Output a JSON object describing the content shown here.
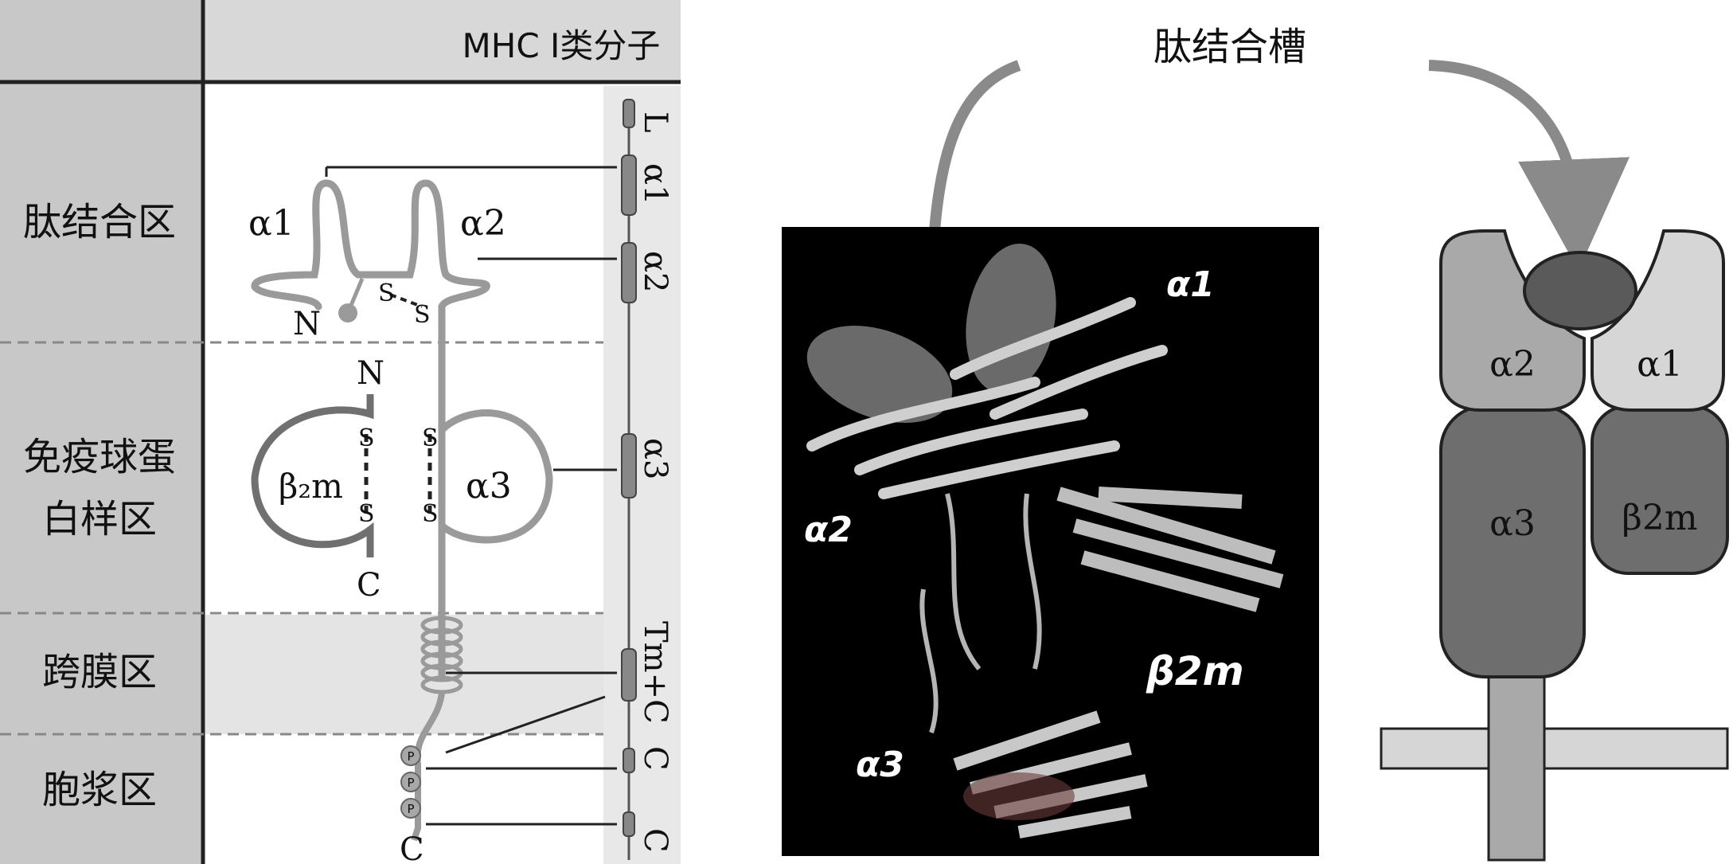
{
  "left_panel": {
    "header": "MHC Ⅰ类分子",
    "regions": [
      {
        "label": "肽结合区",
        "lines": [
          "肽结合区"
        ]
      },
      {
        "label": "免疫球蛋白样区",
        "lines": [
          "免疫球蛋",
          "白样区"
        ]
      },
      {
        "label": "跨膜区",
        "lines": [
          "跨膜区"
        ]
      },
      {
        "label": "胞浆区",
        "lines": [
          "胞浆区"
        ]
      }
    ],
    "domain_labels": {
      "a1": "α1",
      "a2": "α2",
      "a3": "α3",
      "b2m": "β₂m",
      "N1": "N",
      "N2": "N",
      "C1": "C",
      "C2": "C",
      "S": "S",
      "P": "P"
    },
    "gene_labels": [
      "L",
      "α1",
      "α2",
      "α3",
      "Tm+C",
      "C",
      "C"
    ]
  },
  "middle_panel": {
    "callout": "肽结合槽",
    "labels": {
      "a1": "α1",
      "a2": "α2",
      "a3": "α3",
      "b2m": "β2m"
    }
  },
  "right_panel": {
    "labels": {
      "a2": "α2",
      "a1": "α1",
      "a3": "α3",
      "b2m": "β2m"
    }
  },
  "colors": {
    "sidebar": "#c8c8c8",
    "header_bg": "#d8d8d8",
    "band": "#e4e4e4",
    "chain": "#9a9a9a",
    "b2m_chain": "#707070",
    "structure_bg": "#000000",
    "dark_domain": "#6e6e6e",
    "mid_domain": "#a9a9a9",
    "light_domain": "#d6d6d6",
    "peptide": "#5a5a5a"
  }
}
